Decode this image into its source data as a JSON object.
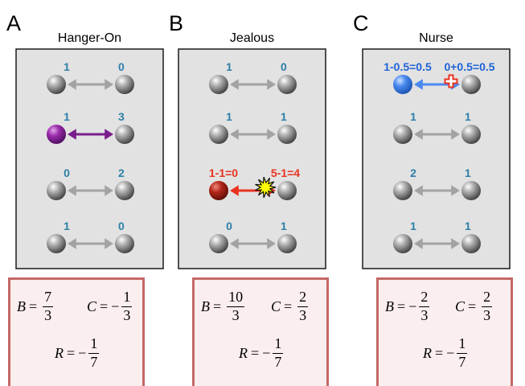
{
  "panels": [
    {
      "letter": "A",
      "title": "Hanger-On",
      "rows": [
        {
          "left_label": "1",
          "right_label": "0",
          "left_kind": "gray",
          "arrow": "gray",
          "label_color": "#2e7fa8"
        },
        {
          "left_label": "1",
          "right_label": "3",
          "left_kind": "purple",
          "arrow": "purple",
          "label_color": "#2e7fa8"
        },
        {
          "left_label": "0",
          "right_label": "2",
          "left_kind": "gray",
          "arrow": "gray",
          "label_color": "#2e7fa8"
        },
        {
          "left_label": "1",
          "right_label": "0",
          "left_kind": "gray",
          "arrow": "gray",
          "label_color": "#2e7fa8"
        }
      ],
      "equations": {
        "B": {
          "sign": "",
          "num": "7",
          "den": "3"
        },
        "C": {
          "sign": "−",
          "num": "1",
          "den": "3"
        },
        "R": {
          "sign": "−",
          "num": "1",
          "den": "7"
        }
      }
    },
    {
      "letter": "B",
      "title": "Jealous",
      "rows": [
        {
          "left_label": "1",
          "right_label": "0",
          "left_kind": "gray",
          "arrow": "gray",
          "label_color": "#2e7fa8"
        },
        {
          "left_label": "1",
          "right_label": "1",
          "left_kind": "gray",
          "arrow": "gray",
          "label_color": "#2e7fa8"
        },
        {
          "left_label": "1-1=0",
          "right_label": "5-1=4",
          "left_kind": "red",
          "arrow": "red",
          "label_color": "#e8331f",
          "burst": true
        },
        {
          "left_label": "0",
          "right_label": "1",
          "left_kind": "gray",
          "arrow": "gray",
          "label_color": "#2e7fa8"
        }
      ],
      "equations": {
        "B": {
          "sign": "",
          "num": "10",
          "den": "3"
        },
        "C": {
          "sign": "",
          "num": "2",
          "den": "3"
        },
        "R": {
          "sign": "−",
          "num": "1",
          "den": "7"
        }
      }
    },
    {
      "letter": "C",
      "title": "Nurse",
      "rows": [
        {
          "left_label": "1-0.5=0.5",
          "right_label": "0+0.5=0.5",
          "left_kind": "blue",
          "arrow": "blue",
          "label_color": "#1f63d6",
          "cross": true
        },
        {
          "left_label": "1",
          "right_label": "1",
          "left_kind": "gray",
          "arrow": "gray",
          "label_color": "#2e7fa8"
        },
        {
          "left_label": "2",
          "right_label": "1",
          "left_kind": "gray",
          "arrow": "gray",
          "label_color": "#2e7fa8"
        },
        {
          "left_label": "1",
          "right_label": "1",
          "left_kind": "gray",
          "arrow": "gray",
          "label_color": "#2e7fa8"
        }
      ],
      "equations": {
        "B": {
          "sign": "−",
          "num": "2",
          "den": "3"
        },
        "C": {
          "sign": "",
          "num": "2",
          "den": "3"
        },
        "R": {
          "sign": "−",
          "num": "1",
          "den": "7"
        }
      }
    }
  ],
  "colors": {
    "panel_bg": "#e2e2e2",
    "gray_arrow": "#a3a3a3",
    "purple": "#7a1d8c",
    "red": "#e8331f",
    "blue": "#4a8af0",
    "eq_border": "#c56868",
    "eq_bg": "#fbeeee"
  }
}
